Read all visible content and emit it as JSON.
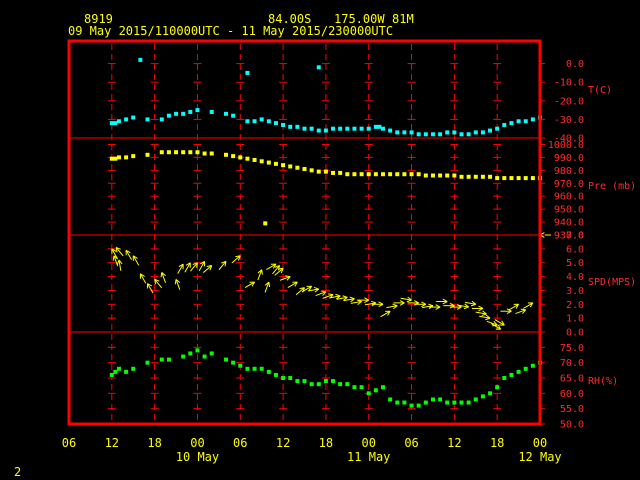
{
  "header": {
    "station": "8919",
    "lat": "84.00S",
    "lon": "175.00W",
    "elev": "81M",
    "range": "09 May 2015/110000UTC - 11 May 2015/230000UTC"
  },
  "footer": {
    "page_num": "2"
  },
  "colors": {
    "background": "#000000",
    "frame": "#ff0000",
    "text": "#ffff00",
    "temperature": "#00ffff",
    "pressure": "#ffff00",
    "wind": "#ffff00",
    "humidity": "#00ff00"
  },
  "chart_data": {
    "type": "scatter",
    "x_unit": "hours since 09 May 2015 00 UTC",
    "x_range": [
      6,
      72
    ],
    "x_ticks": [
      {
        "h": 6,
        "label": "06"
      },
      {
        "h": 12,
        "label": "12"
      },
      {
        "h": 18,
        "label": "18"
      },
      {
        "h": 24,
        "label": "00"
      },
      {
        "h": 30,
        "label": "06"
      },
      {
        "h": 36,
        "label": "12"
      },
      {
        "h": 42,
        "label": "18"
      },
      {
        "h": 48,
        "label": "00"
      },
      {
        "h": 54,
        "label": "06"
      },
      {
        "h": 60,
        "label": "12"
      },
      {
        "h": 66,
        "label": "18"
      },
      {
        "h": 72,
        "label": "00"
      }
    ],
    "day_labels": [
      {
        "h": 24,
        "label": "10 May"
      },
      {
        "h": 48,
        "label": "11 May"
      },
      {
        "h": 72,
        "label": "12 May"
      }
    ],
    "panels": [
      {
        "name": "T(C)",
        "color": "#00ffff",
        "kind": "points",
        "range": [
          -40,
          10
        ],
        "ticks": [
          {
            "v": 0,
            "label": "0.0"
          },
          {
            "v": -10,
            "label": "-10.0"
          },
          {
            "v": -20,
            "label": "-20.0"
          },
          {
            "v": -30,
            "label": "-30.0"
          },
          {
            "v": -40,
            "label": "-40.0"
          }
        ],
        "data": [
          [
            12,
            -32
          ],
          [
            12.5,
            -32
          ],
          [
            13,
            -31
          ],
          [
            14,
            -30
          ],
          [
            15,
            -29
          ],
          [
            16,
            2
          ],
          [
            17,
            -30
          ],
          [
            19,
            -30
          ],
          [
            20,
            -28
          ],
          [
            21,
            -27
          ],
          [
            22,
            -27
          ],
          [
            23,
            -26
          ],
          [
            24,
            -25
          ],
          [
            26,
            -26
          ],
          [
            28,
            -27
          ],
          [
            29,
            -28
          ],
          [
            31,
            -5
          ],
          [
            31,
            -31
          ],
          [
            32,
            -31
          ],
          [
            33,
            -30
          ],
          [
            34,
            -31
          ],
          [
            35,
            -32
          ],
          [
            36,
            -33
          ],
          [
            37,
            -34
          ],
          [
            38,
            -34
          ],
          [
            39,
            -35
          ],
          [
            40,
            -35
          ],
          [
            41,
            -2
          ],
          [
            41,
            -36
          ],
          [
            42,
            -36
          ],
          [
            43,
            -35
          ],
          [
            44,
            -35
          ],
          [
            45,
            -35
          ],
          [
            46,
            -35
          ],
          [
            47,
            -35
          ],
          [
            48,
            -35
          ],
          [
            49,
            -34
          ],
          [
            49.5,
            -34
          ],
          [
            50,
            -35
          ],
          [
            51,
            -36
          ],
          [
            52,
            -37
          ],
          [
            53,
            -37
          ],
          [
            54,
            -37
          ],
          [
            55,
            -38
          ],
          [
            56,
            -38
          ],
          [
            57,
            -38
          ],
          [
            58,
            -38
          ],
          [
            59,
            -37
          ],
          [
            60,
            -37
          ],
          [
            61,
            -38
          ],
          [
            62,
            -38
          ],
          [
            63,
            -37
          ],
          [
            64,
            -37
          ],
          [
            65,
            -36
          ],
          [
            66,
            -35
          ],
          [
            67,
            -33
          ],
          [
            68,
            -32
          ],
          [
            69,
            -31
          ],
          [
            70,
            -31
          ],
          [
            71,
            -30
          ],
          [
            72,
            -29
          ]
        ]
      },
      {
        "name": "Pre (mb)",
        "color": "#ffff00",
        "kind": "points",
        "range": [
          930,
          1005
        ],
        "ticks": [
          {
            "v": 1000,
            "label": "1000.0"
          },
          {
            "v": 990,
            "label": "990.0"
          },
          {
            "v": 980,
            "label": "980.0"
          },
          {
            "v": 970,
            "label": "970.0"
          },
          {
            "v": 960,
            "label": "960.0"
          },
          {
            "v": 950,
            "label": "950.0"
          },
          {
            "v": 940,
            "label": "940.0"
          },
          {
            "v": 930,
            "label": "930.0"
          }
        ],
        "data": [
          [
            12,
            989
          ],
          [
            12.5,
            989
          ],
          [
            13,
            990
          ],
          [
            14,
            990
          ],
          [
            15,
            991
          ],
          [
            17,
            992
          ],
          [
            19,
            994
          ],
          [
            20,
            994
          ],
          [
            21,
            994
          ],
          [
            22,
            994
          ],
          [
            23,
            994
          ],
          [
            24,
            994
          ],
          [
            25,
            993
          ],
          [
            26,
            993
          ],
          [
            28,
            992
          ],
          [
            29,
            991
          ],
          [
            30,
            990
          ],
          [
            31,
            989
          ],
          [
            32,
            988
          ],
          [
            33,
            987
          ],
          [
            33.5,
            939
          ],
          [
            34,
            986
          ],
          [
            35,
            985
          ],
          [
            36,
            984
          ],
          [
            37,
            983
          ],
          [
            38,
            982
          ],
          [
            39,
            981
          ],
          [
            40,
            980
          ],
          [
            41,
            979
          ],
          [
            42,
            979
          ],
          [
            43,
            978
          ],
          [
            44,
            978
          ],
          [
            45,
            977
          ],
          [
            46,
            977
          ],
          [
            47,
            977
          ],
          [
            48,
            977
          ],
          [
            49,
            977
          ],
          [
            50,
            977
          ],
          [
            51,
            977
          ],
          [
            52,
            977
          ],
          [
            53,
            977
          ],
          [
            54,
            977
          ],
          [
            55,
            977
          ],
          [
            56,
            976
          ],
          [
            57,
            976
          ],
          [
            58,
            976
          ],
          [
            59,
            976
          ],
          [
            60,
            976
          ],
          [
            61,
            975
          ],
          [
            62,
            975
          ],
          [
            63,
            975
          ],
          [
            64,
            975
          ],
          [
            65,
            975
          ],
          [
            66,
            974
          ],
          [
            67,
            974
          ],
          [
            68,
            974
          ],
          [
            69,
            974
          ],
          [
            70,
            974
          ],
          [
            71,
            974
          ],
          [
            72,
            974
          ]
        ]
      },
      {
        "name": "SPD(MPS)",
        "color": "#ffff00",
        "kind": "wind",
        "range": [
          0,
          7
        ],
        "ticks": [
          {
            "v": 7,
            "label": "7.0"
          },
          {
            "v": 6,
            "label": "6.0"
          },
          {
            "v": 5,
            "label": "5.0"
          },
          {
            "v": 4,
            "label": "4.0"
          },
          {
            "v": 3,
            "label": "3.0"
          },
          {
            "v": 2,
            "label": "2.0"
          },
          {
            "v": 1,
            "label": "1.0"
          },
          {
            "v": 0,
            "label": "0.0"
          }
        ],
        "data": [
          [
            12,
            6,
            150
          ],
          [
            12.3,
            5.5,
            160
          ],
          [
            12.6,
            6.1,
            140
          ],
          [
            13,
            5.2,
            170
          ],
          [
            14,
            5.9,
            150
          ],
          [
            15,
            5.5,
            150
          ],
          [
            16,
            4.2,
            150
          ],
          [
            17,
            3.5,
            150
          ],
          [
            18,
            3.8,
            140
          ],
          [
            19,
            4.3,
            160
          ],
          [
            21,
            3.8,
            160
          ],
          [
            22,
            4.9,
            210
          ],
          [
            23,
            5,
            210
          ],
          [
            24,
            5,
            220
          ],
          [
            25,
            5.1,
            210
          ],
          [
            26,
            4.8,
            230
          ],
          [
            28,
            5.1,
            220
          ],
          [
            30,
            5.5,
            230
          ],
          [
            32,
            3.6,
            240
          ],
          [
            33,
            4.5,
            200
          ],
          [
            34,
            3.6,
            200
          ],
          [
            35,
            4.9,
            240
          ],
          [
            35.5,
            4.8,
            220
          ],
          [
            36,
            4.6,
            230
          ],
          [
            37,
            4,
            250
          ],
          [
            38,
            3.6,
            240
          ],
          [
            39,
            3.2,
            230
          ],
          [
            40,
            3.3,
            240
          ],
          [
            41,
            3.1,
            260
          ],
          [
            42,
            2.9,
            250
          ],
          [
            43,
            2.7,
            250
          ],
          [
            44,
            2.6,
            260
          ],
          [
            45,
            2.5,
            260
          ],
          [
            46,
            2.4,
            260
          ],
          [
            47,
            2.2,
            260
          ],
          [
            48,
            2.3,
            270
          ],
          [
            49,
            2.1,
            260
          ],
          [
            50,
            2,
            270
          ],
          [
            51,
            1.5,
            240
          ],
          [
            52,
            1.9,
            260
          ],
          [
            53,
            2.1,
            270
          ],
          [
            54,
            2.3,
            280
          ],
          [
            55,
            2.1,
            270
          ],
          [
            56,
            2,
            270
          ],
          [
            57,
            1.9,
            260
          ],
          [
            58,
            1.8,
            270
          ],
          [
            59,
            2.2,
            270
          ],
          [
            60,
            1.9,
            270
          ],
          [
            61,
            1.8,
            270
          ],
          [
            62,
            1.8,
            280
          ],
          [
            63,
            2,
            280
          ],
          [
            64,
            1.7,
            270
          ],
          [
            64.5,
            1.3,
            280
          ],
          [
            65,
            1,
            280
          ],
          [
            66,
            0.5,
            290
          ],
          [
            66.5,
            0.2,
            300
          ],
          [
            67,
            0.5,
            300
          ],
          [
            68,
            1.5,
            270
          ],
          [
            69,
            2,
            240
          ],
          [
            70,
            1.6,
            250
          ],
          [
            71,
            2.1,
            240
          ],
          [
            72,
            7,
            90
          ]
        ]
      },
      {
        "name": "RH(%)",
        "color": "#00ff00",
        "kind": "points",
        "range": [
          50,
          80
        ],
        "ticks": [
          {
            "v": 75,
            "label": "75.0"
          },
          {
            "v": 70,
            "label": "70.0"
          },
          {
            "v": 65,
            "label": "65.0"
          },
          {
            "v": 60,
            "label": "60.0"
          },
          {
            "v": 55,
            "label": "55.0"
          },
          {
            "v": 50,
            "label": "50.0"
          }
        ],
        "data": [
          [
            12,
            66
          ],
          [
            12.5,
            67
          ],
          [
            13,
            68
          ],
          [
            14,
            67
          ],
          [
            15,
            68
          ],
          [
            17,
            70
          ],
          [
            19,
            71
          ],
          [
            20,
            71
          ],
          [
            22,
            72
          ],
          [
            23,
            73
          ],
          [
            24,
            74
          ],
          [
            25,
            72
          ],
          [
            26,
            73
          ],
          [
            28,
            71
          ],
          [
            29,
            70
          ],
          [
            30,
            69
          ],
          [
            31,
            68
          ],
          [
            32,
            68
          ],
          [
            33,
            68
          ],
          [
            34,
            67
          ],
          [
            35,
            66
          ],
          [
            36,
            65
          ],
          [
            37,
            65
          ],
          [
            38,
            64
          ],
          [
            39,
            64
          ],
          [
            40,
            63
          ],
          [
            41,
            63
          ],
          [
            42,
            64
          ],
          [
            43,
            64
          ],
          [
            44,
            63
          ],
          [
            45,
            63
          ],
          [
            46,
            62
          ],
          [
            47,
            62
          ],
          [
            48,
            60
          ],
          [
            49,
            61
          ],
          [
            50,
            62
          ],
          [
            51,
            58
          ],
          [
            52,
            57
          ],
          [
            53,
            57
          ],
          [
            54,
            56
          ],
          [
            55,
            56
          ],
          [
            56,
            57
          ],
          [
            57,
            58
          ],
          [
            58,
            58
          ],
          [
            59,
            57
          ],
          [
            60,
            57
          ],
          [
            61,
            57
          ],
          [
            62,
            57
          ],
          [
            63,
            58
          ],
          [
            64,
            59
          ],
          [
            65,
            60
          ],
          [
            66,
            62
          ],
          [
            67,
            65
          ],
          [
            68,
            66
          ],
          [
            69,
            67
          ],
          [
            70,
            68
          ],
          [
            71,
            69
          ],
          [
            72,
            70
          ]
        ]
      }
    ]
  }
}
